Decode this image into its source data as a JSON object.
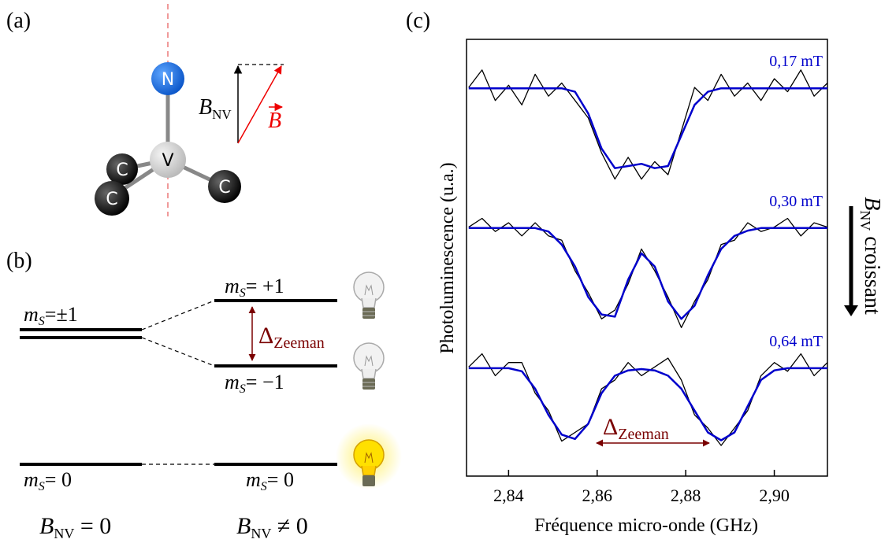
{
  "panel_a": {
    "label": "(a)",
    "atoms": [
      "N",
      "V",
      "C",
      "C",
      "C"
    ],
    "field_parallel": {
      "symbol": "B",
      "subscript": "NV"
    },
    "field_vector": "B"
  },
  "panel_b": {
    "label": "(b)",
    "levels": [
      {
        "symbol": "m",
        "subscript": "S",
        "value": "=±1"
      },
      {
        "symbol": "m",
        "subscript": "S",
        "value": "= +1"
      },
      {
        "symbol": "m",
        "subscript": "S",
        "value": "= −1"
      },
      {
        "symbol": "m",
        "subscript": "S",
        "value": "= 0"
      },
      {
        "symbol": "m",
        "subscript": "S",
        "value": "= 0"
      }
    ],
    "splitting": {
      "symbol": "Δ",
      "subscript": "Zeeman"
    },
    "conditions": [
      {
        "symbol": "B",
        "subscript": "NV",
        "value": " = 0"
      },
      {
        "symbol": "B",
        "subscript": "NV",
        "value": " ≠ 0"
      }
    ]
  },
  "chart_data": {
    "type": "line",
    "label": "(c)",
    "x_label": "Fréquence micro-onde (GHz)",
    "y_label": "Photoluminescence (u.a.)",
    "side_annotation": {
      "symbol": "B",
      "subscript": "NV",
      "text": " croissant"
    },
    "splitting": {
      "symbol": "Δ",
      "subscript": "Zeeman"
    },
    "xlim": [
      2.8305,
      2.912
    ],
    "ylim": [
      0,
      10
    ],
    "xticks": [
      {
        "value": 2.84,
        "label": "2,84"
      },
      {
        "value": 2.86,
        "label": "2,86"
      },
      {
        "value": 2.88,
        "label": "2,88"
      },
      {
        "value": 2.9,
        "label": "2,90"
      }
    ],
    "x": [
      2.831,
      2.834,
      2.837,
      2.84,
      2.843,
      2.846,
      2.849,
      2.852,
      2.855,
      2.858,
      2.861,
      2.864,
      2.867,
      2.87,
      2.873,
      2.876,
      2.879,
      2.882,
      2.885,
      2.888,
      2.891,
      2.894,
      2.897,
      2.9,
      2.903,
      2.906,
      2.909,
      2.912
    ],
    "series": [
      {
        "color": "#000000",
        "values": [
          8.9,
          9.3,
          8.6,
          8.95,
          8.5,
          9.2,
          8.7,
          9.0,
          8.6,
          8.2,
          7.4,
          6.8,
          7.3,
          6.8,
          7.2,
          6.9,
          7.9,
          8.9,
          8.6,
          9.2,
          8.7,
          9.0,
          8.6,
          9.1,
          8.8,
          9.3,
          8.7,
          9.0
        ]
      },
      {
        "name": "0,17 mT",
        "color": "#0000cc",
        "values": [
          8.88,
          8.88,
          8.88,
          8.88,
          8.88,
          8.88,
          8.88,
          8.88,
          8.8,
          8.3,
          7.5,
          7.05,
          7.1,
          7.15,
          7.05,
          7.1,
          7.8,
          8.5,
          8.8,
          8.88,
          8.88,
          8.88,
          8.88,
          8.88,
          8.88,
          8.88,
          8.88,
          8.88
        ]
      },
      {
        "color": "#000000",
        "values": [
          5.7,
          5.9,
          5.6,
          5.8,
          5.5,
          5.8,
          5.5,
          5.4,
          4.7,
          4.2,
          3.6,
          3.8,
          4.4,
          5.2,
          4.7,
          4.1,
          3.4,
          4.0,
          4.5,
          5.3,
          5.4,
          5.8,
          5.6,
          5.7,
          5.9,
          5.5,
          5.8,
          5.7
        ]
      },
      {
        "name": "0,30 mT",
        "color": "#0000cc",
        "values": [
          5.68,
          5.68,
          5.68,
          5.68,
          5.68,
          5.68,
          5.6,
          5.3,
          4.8,
          4.1,
          3.7,
          3.65,
          4.5,
          5.1,
          4.8,
          4.0,
          3.6,
          3.9,
          4.6,
          5.2,
          5.5,
          5.62,
          5.68,
          5.68,
          5.68,
          5.68,
          5.68,
          5.68
        ]
      },
      {
        "color": "#000000",
        "values": [
          2.5,
          2.8,
          2.3,
          2.6,
          2.6,
          1.9,
          1.5,
          0.8,
          1.0,
          1.2,
          2.0,
          2.2,
          2.6,
          2.3,
          2.5,
          2.7,
          2.2,
          1.4,
          1.1,
          0.7,
          1.1,
          1.5,
          2.3,
          2.6,
          2.4,
          2.8,
          2.3,
          2.6
        ]
      },
      {
        "name": "0,64 mT",
        "color": "#0000cc",
        "values": [
          2.47,
          2.47,
          2.47,
          2.47,
          2.4,
          2.0,
          1.4,
          0.95,
          0.85,
          1.2,
          1.9,
          2.3,
          2.42,
          2.45,
          2.42,
          2.3,
          2.0,
          1.5,
          1.0,
          0.82,
          1.0,
          1.6,
          2.2,
          2.42,
          2.47,
          2.47,
          2.47,
          2.47
        ]
      }
    ]
  }
}
